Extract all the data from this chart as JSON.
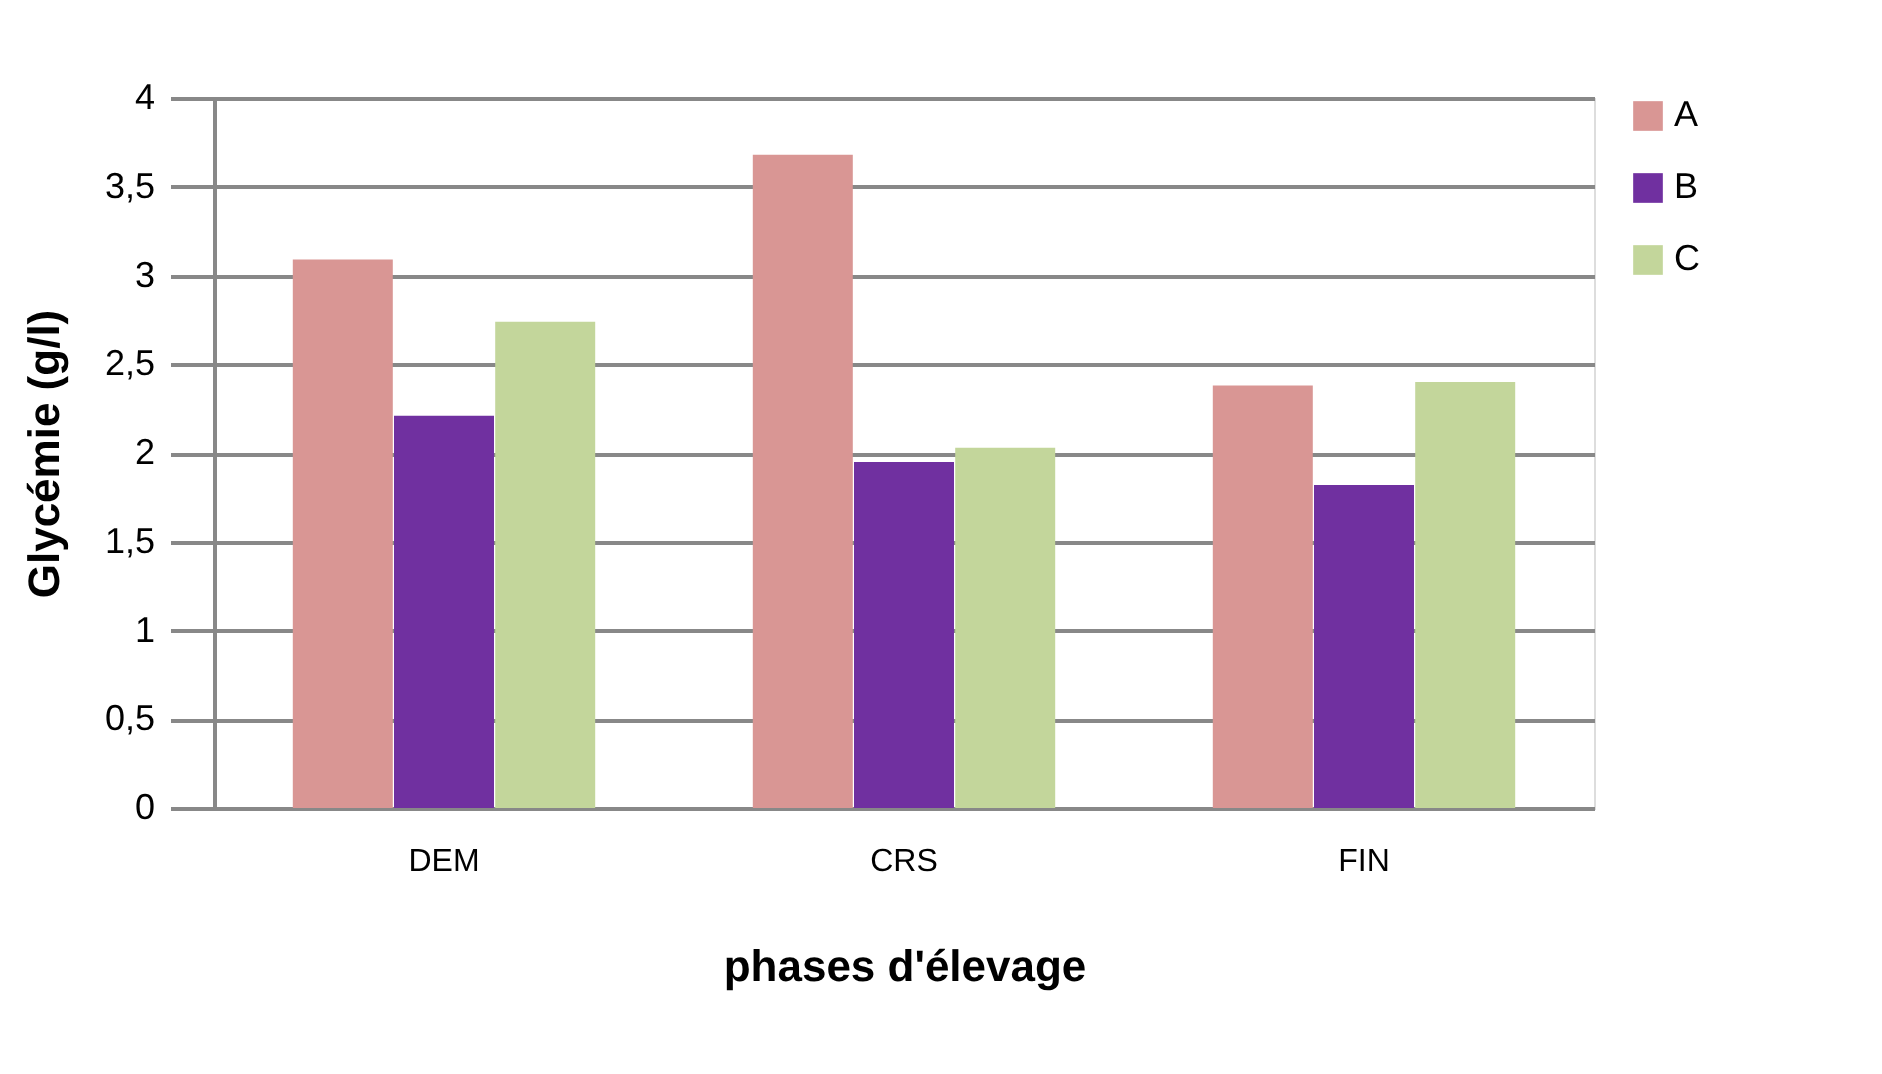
{
  "chart_data": {
    "type": "bar",
    "xlabel": "phases d'élevage",
    "ylabel": "Glycémie (g/l)",
    "categories": [
      "DEM",
      "CRS",
      "FIN"
    ],
    "series": [
      {
        "name": "A",
        "color": "#d99694",
        "values": [
          3.09,
          3.68,
          2.38
        ]
      },
      {
        "name": "B",
        "color": "#7030a0",
        "values": [
          2.21,
          1.95,
          1.82
        ]
      },
      {
        "name": "C",
        "color": "#c3d69b",
        "values": [
          2.74,
          2.03,
          2.4
        ]
      }
    ],
    "ylim": [
      0,
      4
    ],
    "yticks": [
      {
        "value": 0,
        "label": "0"
      },
      {
        "value": 0.5,
        "label": "0,5"
      },
      {
        "value": 1,
        "label": "1"
      },
      {
        "value": 1.5,
        "label": "1,5"
      },
      {
        "value": 2,
        "label": "2"
      },
      {
        "value": 2.5,
        "label": "2,5"
      },
      {
        "value": 3,
        "label": "3"
      },
      {
        "value": 3.5,
        "label": "3,5"
      },
      {
        "value": 4,
        "label": "4"
      }
    ],
    "grid": "y",
    "legend": "right"
  }
}
